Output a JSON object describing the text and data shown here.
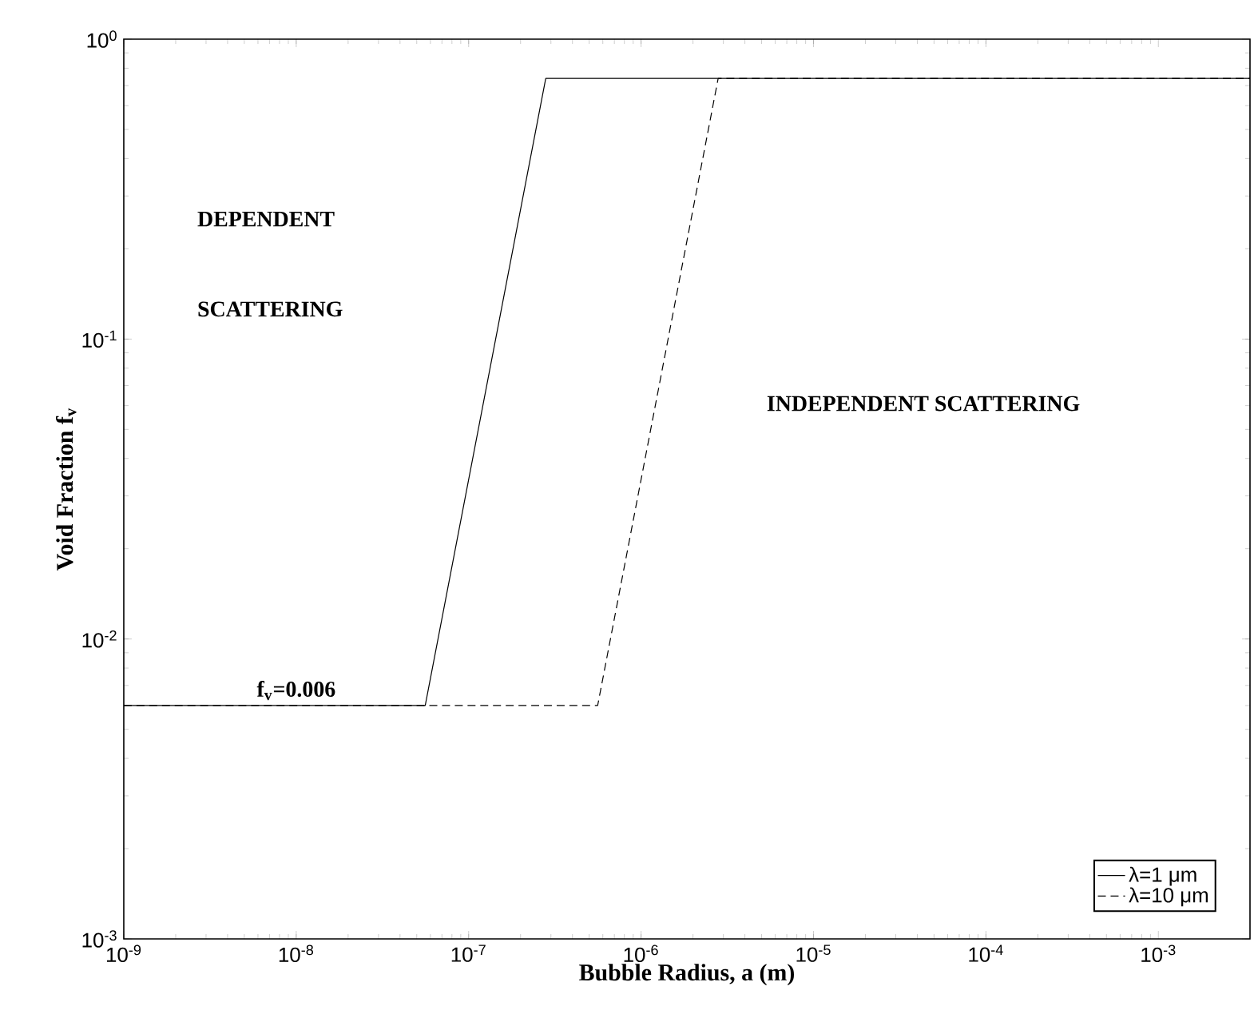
{
  "chart_data": {
    "type": "line",
    "xlabel": "Bubble Radius, a (m)",
    "ylabel": "Void Fraction f$_{v}$",
    "log": "xy",
    "xlim": [
      1e-09,
      0.0034
    ],
    "ylim": [
      0.001,
      1
    ],
    "xticks": [
      {
        "value": 1e-09,
        "label": "10$^{-9}$"
      },
      {
        "value": 1e-08,
        "label": "10$^{-8}$"
      },
      {
        "value": 1e-07,
        "label": "10$^{-7}$"
      },
      {
        "value": 1e-06,
        "label": "10$^{-6}$"
      },
      {
        "value": 1e-05,
        "label": "10$^{-5}$"
      },
      {
        "value": 0.0001,
        "label": "10$^{-4}$"
      },
      {
        "value": 0.001,
        "label": "10$^{-3}$"
      }
    ],
    "yticks": [
      {
        "value": 0.001,
        "label": "10$^{-3}$"
      },
      {
        "value": 0.01,
        "label": "10$^{-2}$"
      },
      {
        "value": 0.1,
        "label": "10$^{-1}$"
      },
      {
        "value": 1,
        "label": "10$^{0}$"
      }
    ],
    "series": [
      {
        "name": "λ=1 μm",
        "color": "#000000",
        "line_style": "solid",
        "x": [
          1e-09,
          5.6e-08,
          2.8e-07,
          0.0034
        ],
        "values": [
          0.006,
          0.006,
          0.74,
          0.74
        ]
      },
      {
        "name": "λ=10 μm",
        "color": "#000000",
        "line_style": "dashed",
        "x": [
          1e-09,
          5.6e-07,
          2.8e-06,
          0.0034
        ],
        "values": [
          0.006,
          0.006,
          0.74,
          0.74
        ]
      }
    ],
    "annotations": [
      "DEPENDENT",
      "SCATTERING",
      "INDEPENDENT SCATTERING",
      {
        "text": "f$_{v}$=0.006",
        "x": 1e-08,
        "y": 0.006
      }
    ],
    "legend": "bottom right",
    "grid": false
  }
}
